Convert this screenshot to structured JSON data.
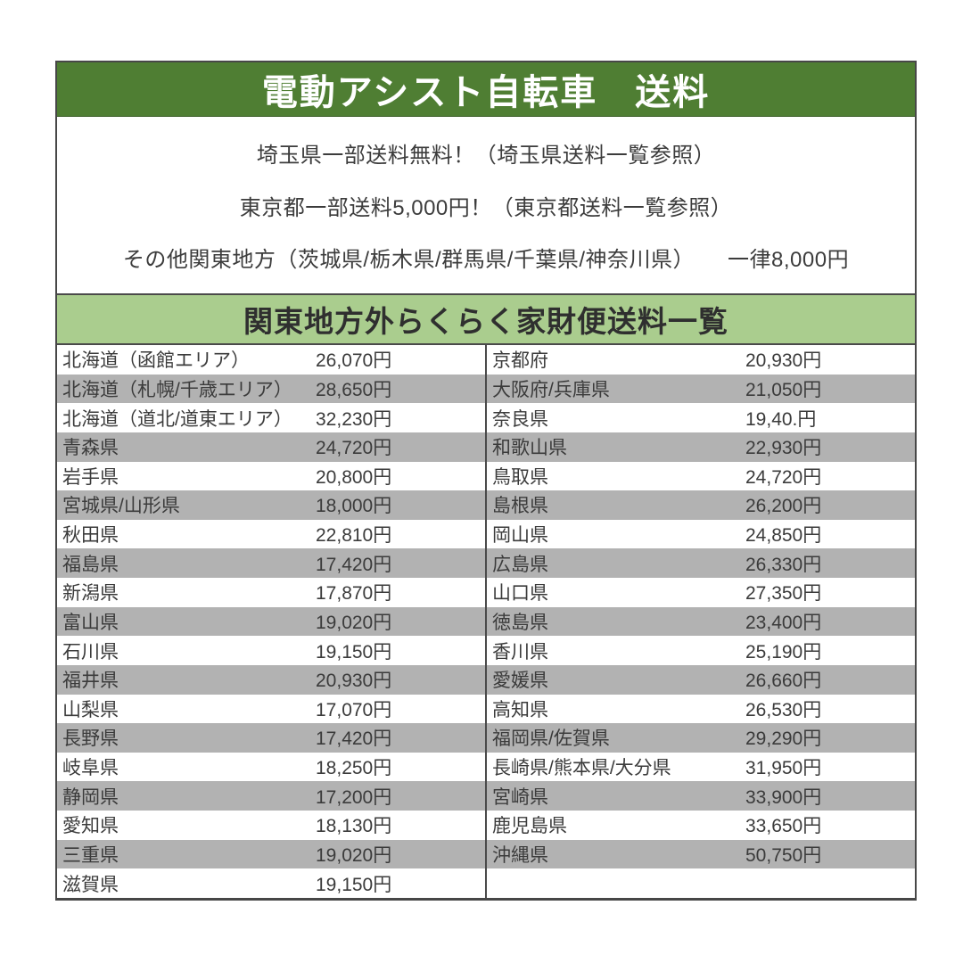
{
  "header": {
    "title": "電動アシスト自転車　送料",
    "bg_color": "#4f7e33",
    "text_color": "#ffffff"
  },
  "notes": {
    "line1": "埼玉県一部送料無料！（埼玉県送料一覧参照）",
    "line2": "東京都一部送料5,000円！（東京都送料一覧参照）",
    "line3": "その他関東地方（茨城県/栃木県/群馬県/千葉県/神奈川県）　　一律8,000円"
  },
  "section": {
    "title": "関東地方外らくらく家財便送料一覧",
    "bg_color": "#aacd8e"
  },
  "table": {
    "stripe_color": "#b2b2b2",
    "left_rows": [
      {
        "region": "北海道（函館エリア）",
        "price": "26,070円"
      },
      {
        "region": "北海道（札幌/千歳エリア）",
        "price": "28,650円"
      },
      {
        "region": "北海道（道北/道東エリア）",
        "price": "32,230円"
      },
      {
        "region": "青森県",
        "price": "24,720円"
      },
      {
        "region": "岩手県",
        "price": "20,800円"
      },
      {
        "region": "宮城県/山形県",
        "price": "18,000円"
      },
      {
        "region": "秋田県",
        "price": "22,810円"
      },
      {
        "region": "福島県",
        "price": "17,420円"
      },
      {
        "region": "新潟県",
        "price": "17,870円"
      },
      {
        "region": "富山県",
        "price": "19,020円"
      },
      {
        "region": "石川県",
        "price": "19,150円"
      },
      {
        "region": "福井県",
        "price": "20,930円"
      },
      {
        "region": "山梨県",
        "price": "17,070円"
      },
      {
        "region": "長野県",
        "price": "17,420円"
      },
      {
        "region": "岐阜県",
        "price": "18,250円"
      },
      {
        "region": "静岡県",
        "price": "17,200円"
      },
      {
        "region": "愛知県",
        "price": "18,130円"
      },
      {
        "region": "三重県",
        "price": "19,020円"
      },
      {
        "region": "滋賀県",
        "price": "19,150円"
      }
    ],
    "right_rows": [
      {
        "region": "京都府",
        "price": "20,930円"
      },
      {
        "region": "大阪府/兵庫県",
        "price": "21,050円"
      },
      {
        "region": "奈良県",
        "price": "19,40.円"
      },
      {
        "region": "和歌山県",
        "price": "22,930円"
      },
      {
        "region": "鳥取県",
        "price": "24,720円"
      },
      {
        "region": "島根県",
        "price": "26,200円"
      },
      {
        "region": "岡山県",
        "price": "24,850円"
      },
      {
        "region": "広島県",
        "price": "26,330円"
      },
      {
        "region": "山口県",
        "price": "27,350円"
      },
      {
        "region": "徳島県",
        "price": "23,400円"
      },
      {
        "region": "香川県",
        "price": "25,190円"
      },
      {
        "region": "愛媛県",
        "price": "26,660円"
      },
      {
        "region": "高知県",
        "price": "26,530円"
      },
      {
        "region": "福岡県/佐賀県",
        "price": "29,290円"
      },
      {
        "region": "長崎県/熊本県/大分県",
        "price": "31,950円"
      },
      {
        "region": "宮崎県",
        "price": "33,900円"
      },
      {
        "region": "鹿児島県",
        "price": "33,650円"
      },
      {
        "region": "沖縄県",
        "price": "50,750円"
      },
      {
        "region": "",
        "price": ""
      }
    ]
  }
}
